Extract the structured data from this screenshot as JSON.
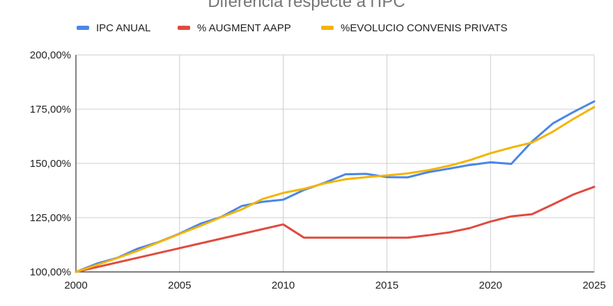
{
  "chart_data": {
    "type": "line",
    "title": "Diferencia respecte a l'IPC",
    "xlabel": "",
    "ylabel": "",
    "xlim": [
      2000,
      2025
    ],
    "ylim": [
      100,
      200
    ],
    "x_ticks": [
      2000,
      2005,
      2010,
      2015,
      2020,
      2025
    ],
    "x_tick_labels": [
      "2000",
      "2005",
      "2010",
      "2015",
      "2020",
      "2025"
    ],
    "y_ticks": [
      100,
      125,
      150,
      175,
      200
    ],
    "y_tick_labels": [
      "100,00%",
      "125,00%",
      "150,00%",
      "175,00%",
      "200,00%"
    ],
    "grid": true,
    "legend_position": "top",
    "series": [
      {
        "name": "IPC ANUAL",
        "color": "#4a86e8",
        "x": [
          2000,
          2001,
          2002,
          2003,
          2004,
          2005,
          2006,
          2007,
          2008,
          2009,
          2010,
          2011,
          2012,
          2013,
          2014,
          2015,
          2016,
          2017,
          2018,
          2019,
          2020,
          2021,
          2022,
          2023,
          2024,
          2025
        ],
        "y": [
          100,
          103.8,
          106.5,
          110.8,
          113.8,
          117.7,
          122.2,
          125.3,
          130.4,
          132.3,
          133.3,
          137.8,
          141.1,
          145.0,
          145.2,
          143.7,
          143.6,
          146.0,
          147.6,
          149.3,
          150.5,
          149.8,
          160.1,
          168.4,
          173.7,
          178.6
        ]
      },
      {
        "name": "% AUGMENT AAPP",
        "color": "#e04a3f",
        "x": [
          2000,
          2010,
          2011,
          2012,
          2013,
          2014,
          2015,
          2016,
          2017,
          2018,
          2019,
          2020,
          2021,
          2022,
          2023,
          2024,
          2025
        ],
        "y": [
          100,
          121.9,
          115.8,
          115.8,
          115.8,
          115.8,
          115.8,
          115.8,
          116.9,
          118.2,
          120.2,
          123.2,
          125.6,
          126.6,
          131.1,
          135.7,
          139.2
        ]
      },
      {
        "name": "%EVOLUCIO CONVENIS  PRIVATS",
        "color": "#f4b400",
        "x": [
          2000,
          2001,
          2002,
          2003,
          2004,
          2005,
          2006,
          2007,
          2008,
          2009,
          2010,
          2011,
          2012,
          2013,
          2014,
          2015,
          2016,
          2017,
          2018,
          2019,
          2020,
          2021,
          2022,
          2023,
          2024,
          2025
        ],
        "y": [
          100,
          103.2,
          106.4,
          109.8,
          113.7,
          117.5,
          121.2,
          125.2,
          128.8,
          133.6,
          136.4,
          138.3,
          140.8,
          142.7,
          143.7,
          144.5,
          145.4,
          146.9,
          148.9,
          151.5,
          154.7,
          157.3,
          159.6,
          164.6,
          170.5,
          176.0
        ]
      }
    ]
  }
}
